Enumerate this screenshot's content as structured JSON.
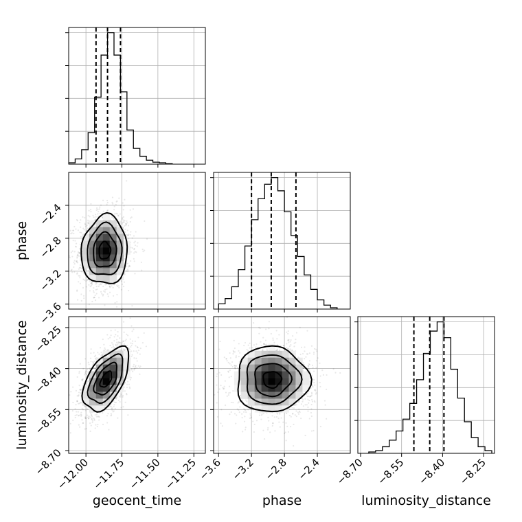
{
  "chart_data": {
    "type": "corner",
    "parameters": [
      {
        "name": "geocent_time",
        "range": [
          -12.12,
          -11.17
        ],
        "ticks": [
          -12.0,
          -11.75,
          -11.5,
          -11.25
        ],
        "tick_labels": [
          "−12.00",
          "−11.75",
          "−11.50",
          "−11.25"
        ],
        "quantiles": [
          -11.93,
          -11.85,
          -11.76
        ],
        "hist_bin_edges": [
          -12.12,
          -12.075,
          -12.03,
          -11.985,
          -11.94,
          -11.895,
          -11.85,
          -11.805,
          -11.76,
          -11.715,
          -11.67,
          -11.625,
          -11.58,
          -11.535,
          -11.49,
          -11.445,
          -11.4
        ],
        "hist_values": [
          1,
          4,
          11,
          24,
          51,
          83,
          100,
          83,
          55,
          26,
          12,
          6,
          3,
          1.5,
          1,
          0.4
        ]
      },
      {
        "name": "phase",
        "range": [
          -3.66,
          -2.0
        ],
        "ticks": [
          -3.6,
          -3.2,
          -2.8,
          -2.4
        ],
        "tick_labels": [
          "−3.6",
          "−3.2",
          "−2.8",
          "−2.4"
        ],
        "quantiles": [
          -3.2,
          -2.96,
          -2.66
        ],
        "hist_bin_edges": [
          -3.6,
          -3.52,
          -3.44,
          -3.36,
          -3.28,
          -3.2,
          -3.12,
          -3.04,
          -2.96,
          -2.88,
          -2.8,
          -2.72,
          -2.64,
          -2.56,
          -2.48,
          -2.4,
          -2.32,
          -2.24,
          -2.16
        ],
        "hist_values": [
          4,
          8,
          17,
          30,
          48,
          68,
          84,
          95,
          100,
          90,
          74,
          56,
          40,
          26,
          15,
          7,
          3,
          1
        ]
      },
      {
        "name": "luminosity_distance",
        "range": [
          -8.71,
          -8.21
        ],
        "ticks": [
          -8.7,
          -8.55,
          -8.4,
          -8.25
        ],
        "tick_labels": [
          "−8.70",
          "−8.55",
          "−8.40",
          "−8.25"
        ],
        "quantiles": [
          -8.505,
          -8.447,
          -8.395
        ],
        "hist_bin_edges": [
          -8.67,
          -8.645,
          -8.62,
          -8.595,
          -8.57,
          -8.545,
          -8.52,
          -8.495,
          -8.47,
          -8.445,
          -8.42,
          -8.395,
          -8.37,
          -8.345,
          -8.32,
          -8.295,
          -8.27,
          -8.245,
          -8.22
        ],
        "hist_values": [
          1,
          2,
          5,
          10,
          17,
          26,
          38,
          56,
          76,
          93,
          100,
          88,
          64,
          42,
          24,
          12,
          5,
          2
        ]
      }
    ],
    "pairs": [
      {
        "x": "geocent_time",
        "y": "phase",
        "center": [
          -11.87,
          -2.95
        ],
        "sigma": [
          0.08,
          0.21
        ],
        "correlation": 0.05
      },
      {
        "x": "geocent_time",
        "y": "luminosity_distance",
        "center": [
          -11.86,
          -8.44
        ],
        "sigma": [
          0.08,
          0.058
        ],
        "correlation": 0.55
      },
      {
        "x": "phase",
        "y": "luminosity_distance",
        "center": [
          -2.95,
          -8.44
        ],
        "sigma": [
          0.22,
          0.06
        ],
        "correlation": 0.0
      }
    ],
    "contour_levels_sigma": [
      0.5,
      1.0,
      1.5,
      2.0
    ],
    "grid": true,
    "legend": "none"
  }
}
